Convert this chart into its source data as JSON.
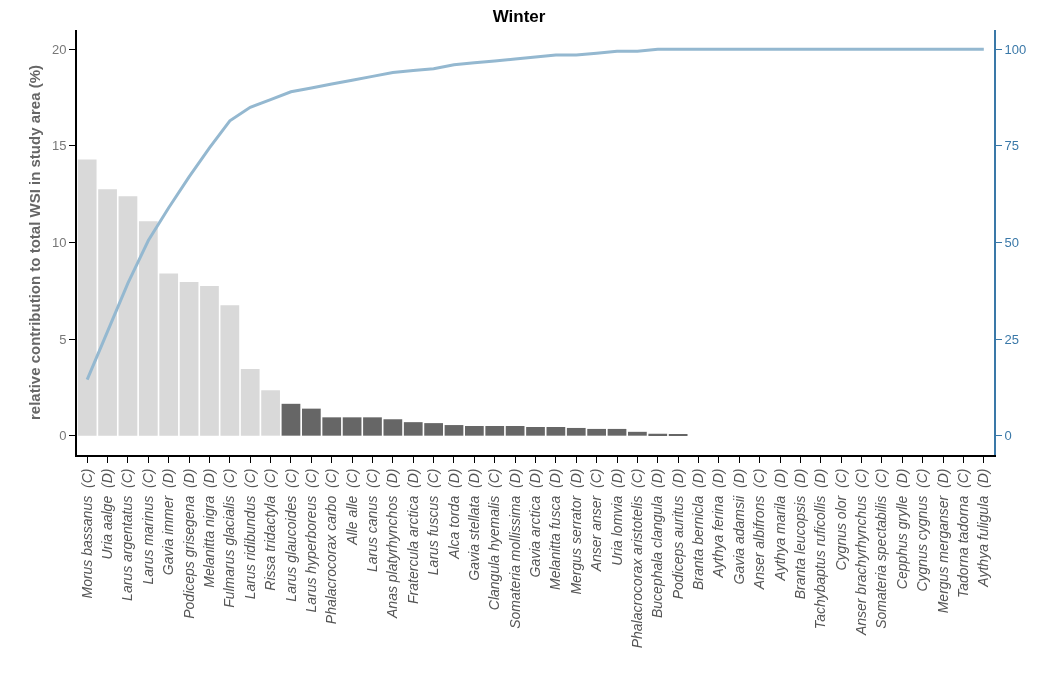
{
  "chart_data": {
    "type": "bar",
    "title": "Winter",
    "ylabel": "relative contribution to total WSI in study area (%)",
    "categories": [
      "Morus bassanus  (C)",
      "Uria aalge  (D)",
      "Larus argentatus  (C)",
      "Larus marinus  (C)",
      "Gavia immer  (D)",
      "Podiceps grisegena  (D)",
      "Melanitta nigra  (D)",
      "Fulmarus glacialis  (C)",
      "Larus ridibundus  (C)",
      "Rissa tridactyla  (C)",
      "Larus glaucoides  (C)",
      "Larus hyperboreus  (C)",
      "Phalacrocorax carbo  (C)",
      "Alle alle  (C)",
      "Larus canus  (C)",
      "Anas platyrhynchos  (D)",
      "Fratercula arctica  (D)",
      "Larus fuscus  (C)",
      "Alca torda  (D)",
      "Gavia stellata  (D)",
      "Clangula hyemalis  (C)",
      "Somateria mollissima  (D)",
      "Gavia arctica  (D)",
      "Melanitta fusca  (D)",
      "Mergus serrator  (D)",
      "Anser anser  (C)",
      "Uria lomvia  (D)",
      "Phalacrocorax aristotelis  (C)",
      "Bucephala clangula  (D)",
      "Podiceps auritus  (D)",
      "Branta bernicla  (D)",
      "Aythya ferina  (D)",
      "Gavia adamsii  (D)",
      "Anser albifrons  (C)",
      "Aythya marila  (D)",
      "Branta leucopsis  (D)",
      "Tachybaptus ruficollis  (D)",
      "Cygnus olor  (C)",
      "Anser brachyrhynchus  (C)",
      "Somateria spectabilis  (C)",
      "Cepphus grylle  (D)",
      "Cygnus cygnus  (C)",
      "Mergus merganser  (D)",
      "Tadorna tadorna  (C)",
      "Aythya fuligula  (D)"
    ],
    "series": [
      {
        "values": [
          14.3,
          12.75,
          12.4,
          11.1,
          8.4,
          7.95,
          7.75,
          6.75,
          3.45,
          2.35,
          1.65,
          1.4,
          0.95,
          0.95,
          0.95,
          0.85,
          0.7,
          0.65,
          0.55,
          0.5,
          0.5,
          0.5,
          0.45,
          0.45,
          0.4,
          0.35,
          0.35,
          0.2,
          0.1,
          0.05,
          0,
          0,
          0,
          0,
          0,
          0,
          0,
          0,
          0,
          0,
          0,
          0,
          0,
          0,
          0
        ],
        "colors": [
          "#d9d9d9",
          "#d9d9d9",
          "#d9d9d9",
          "#d9d9d9",
          "#d9d9d9",
          "#d9d9d9",
          "#d9d9d9",
          "#d9d9d9",
          "#d9d9d9",
          "#d9d9d9",
          "#666666",
          "#666666",
          "#666666",
          "#666666",
          "#666666",
          "#666666",
          "#666666",
          "#666666",
          "#666666",
          "#666666",
          "#666666",
          "#666666",
          "#666666",
          "#666666",
          "#666666",
          "#666666",
          "#666666",
          "#666666",
          "#666666",
          "#666666",
          "#666666",
          "#666666",
          "#666666",
          "#666666",
          "#666666",
          "#666666",
          "#666666",
          "#666666",
          "#666666",
          "#666666",
          "#666666",
          "#666666",
          "#666666",
          "#666666",
          "#666666"
        ]
      },
      {
        "type": "line",
        "axis": "y2",
        "color": "#94b8d0",
        "values": [
          14.5,
          27,
          39.5,
          50.5,
          59,
          67,
          74.5,
          81.5,
          85,
          87,
          89,
          90,
          91,
          92,
          93,
          94,
          94.5,
          95,
          96,
          96.5,
          97,
          97.5,
          98,
          98.5,
          98.5,
          99,
          99.5,
          99.5,
          100,
          100,
          100,
          100,
          100,
          100,
          100,
          100,
          100,
          100,
          100,
          100,
          100,
          100,
          100,
          100,
          100
        ]
      }
    ],
    "ylim": [
      -1,
      21
    ],
    "yticks": [
      0,
      5,
      10,
      15,
      20
    ],
    "y2lim": [
      -5,
      105
    ],
    "y2ticks": [
      0,
      25,
      50,
      75,
      100
    ],
    "legend": false
  }
}
